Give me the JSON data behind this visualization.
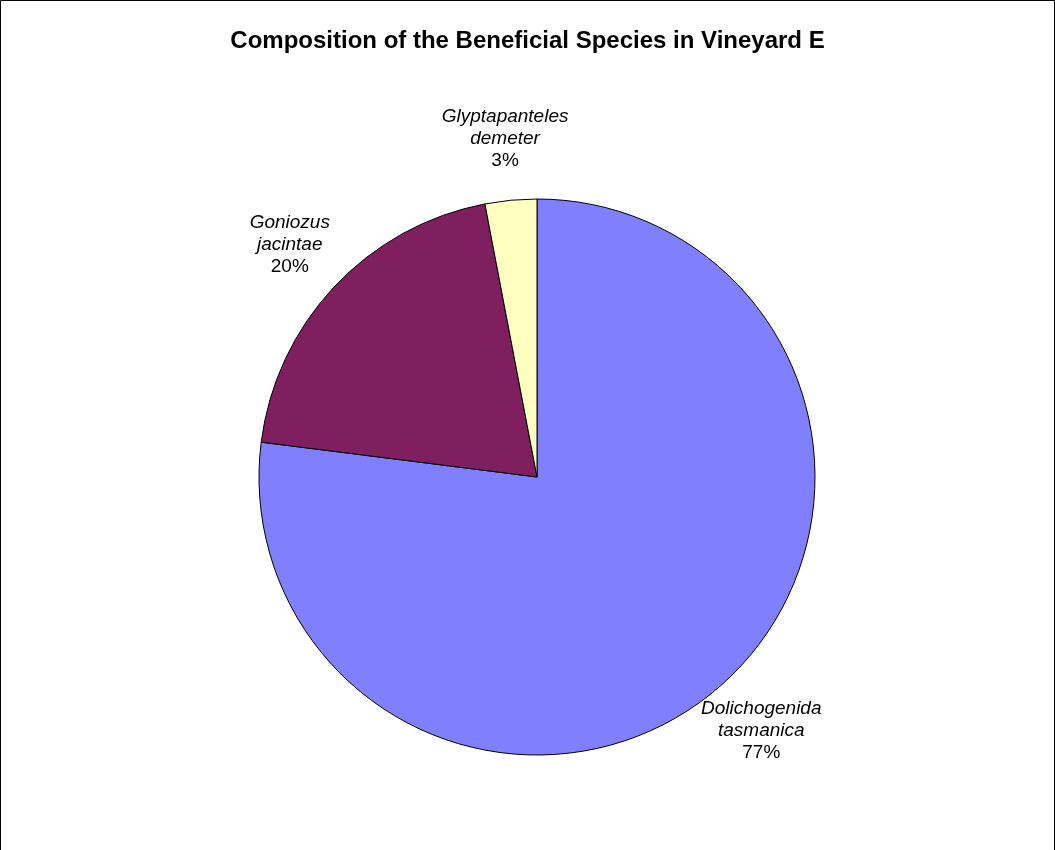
{
  "chart_data": {
    "type": "pie",
    "title": "Composition of the Beneficial Species in Vineyard E",
    "categories": [
      "Dolichogenida tasmanica",
      "Goniozus jacintae",
      "Glyptapanteles demeter"
    ],
    "values": [
      77,
      20,
      3
    ],
    "colors": [
      "#8080ff",
      "#7f1f5f",
      "#ffffc0"
    ],
    "value_labels": [
      "77%",
      "20%",
      "3%"
    ]
  }
}
